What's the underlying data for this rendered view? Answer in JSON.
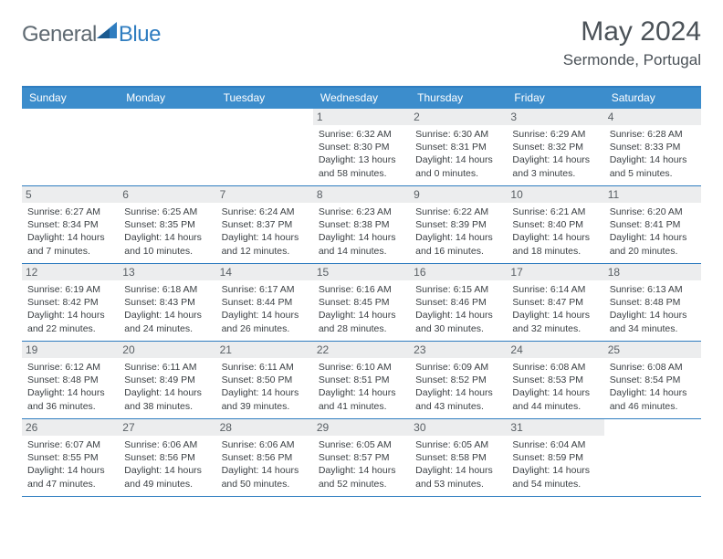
{
  "brand": {
    "part1": "General",
    "part2": "Blue"
  },
  "title": "May 2024",
  "location": "Sermonde, Portugal",
  "colors": {
    "header_bg": "#3c8dcc",
    "border": "#2f7dc0",
    "daynum_bg": "#ecedee",
    "text": "#3a3f43",
    "title_text": "#4b5258"
  },
  "dayHeaders": [
    "Sunday",
    "Monday",
    "Tuesday",
    "Wednesday",
    "Thursday",
    "Friday",
    "Saturday"
  ],
  "weeks": [
    [
      null,
      null,
      null,
      {
        "n": "1",
        "sunrise": "6:32 AM",
        "sunset": "8:30 PM",
        "daylight": "13 hours and 58 minutes."
      },
      {
        "n": "2",
        "sunrise": "6:30 AM",
        "sunset": "8:31 PM",
        "daylight": "14 hours and 0 minutes."
      },
      {
        "n": "3",
        "sunrise": "6:29 AM",
        "sunset": "8:32 PM",
        "daylight": "14 hours and 3 minutes."
      },
      {
        "n": "4",
        "sunrise": "6:28 AM",
        "sunset": "8:33 PM",
        "daylight": "14 hours and 5 minutes."
      }
    ],
    [
      {
        "n": "5",
        "sunrise": "6:27 AM",
        "sunset": "8:34 PM",
        "daylight": "14 hours and 7 minutes."
      },
      {
        "n": "6",
        "sunrise": "6:25 AM",
        "sunset": "8:35 PM",
        "daylight": "14 hours and 10 minutes."
      },
      {
        "n": "7",
        "sunrise": "6:24 AM",
        "sunset": "8:37 PM",
        "daylight": "14 hours and 12 minutes."
      },
      {
        "n": "8",
        "sunrise": "6:23 AM",
        "sunset": "8:38 PM",
        "daylight": "14 hours and 14 minutes."
      },
      {
        "n": "9",
        "sunrise": "6:22 AM",
        "sunset": "8:39 PM",
        "daylight": "14 hours and 16 minutes."
      },
      {
        "n": "10",
        "sunrise": "6:21 AM",
        "sunset": "8:40 PM",
        "daylight": "14 hours and 18 minutes."
      },
      {
        "n": "11",
        "sunrise": "6:20 AM",
        "sunset": "8:41 PM",
        "daylight": "14 hours and 20 minutes."
      }
    ],
    [
      {
        "n": "12",
        "sunrise": "6:19 AM",
        "sunset": "8:42 PM",
        "daylight": "14 hours and 22 minutes."
      },
      {
        "n": "13",
        "sunrise": "6:18 AM",
        "sunset": "8:43 PM",
        "daylight": "14 hours and 24 minutes."
      },
      {
        "n": "14",
        "sunrise": "6:17 AM",
        "sunset": "8:44 PM",
        "daylight": "14 hours and 26 minutes."
      },
      {
        "n": "15",
        "sunrise": "6:16 AM",
        "sunset": "8:45 PM",
        "daylight": "14 hours and 28 minutes."
      },
      {
        "n": "16",
        "sunrise": "6:15 AM",
        "sunset": "8:46 PM",
        "daylight": "14 hours and 30 minutes."
      },
      {
        "n": "17",
        "sunrise": "6:14 AM",
        "sunset": "8:47 PM",
        "daylight": "14 hours and 32 minutes."
      },
      {
        "n": "18",
        "sunrise": "6:13 AM",
        "sunset": "8:48 PM",
        "daylight": "14 hours and 34 minutes."
      }
    ],
    [
      {
        "n": "19",
        "sunrise": "6:12 AM",
        "sunset": "8:48 PM",
        "daylight": "14 hours and 36 minutes."
      },
      {
        "n": "20",
        "sunrise": "6:11 AM",
        "sunset": "8:49 PM",
        "daylight": "14 hours and 38 minutes."
      },
      {
        "n": "21",
        "sunrise": "6:11 AM",
        "sunset": "8:50 PM",
        "daylight": "14 hours and 39 minutes."
      },
      {
        "n": "22",
        "sunrise": "6:10 AM",
        "sunset": "8:51 PM",
        "daylight": "14 hours and 41 minutes."
      },
      {
        "n": "23",
        "sunrise": "6:09 AM",
        "sunset": "8:52 PM",
        "daylight": "14 hours and 43 minutes."
      },
      {
        "n": "24",
        "sunrise": "6:08 AM",
        "sunset": "8:53 PM",
        "daylight": "14 hours and 44 minutes."
      },
      {
        "n": "25",
        "sunrise": "6:08 AM",
        "sunset": "8:54 PM",
        "daylight": "14 hours and 46 minutes."
      }
    ],
    [
      {
        "n": "26",
        "sunrise": "6:07 AM",
        "sunset": "8:55 PM",
        "daylight": "14 hours and 47 minutes."
      },
      {
        "n": "27",
        "sunrise": "6:06 AM",
        "sunset": "8:56 PM",
        "daylight": "14 hours and 49 minutes."
      },
      {
        "n": "28",
        "sunrise": "6:06 AM",
        "sunset": "8:56 PM",
        "daylight": "14 hours and 50 minutes."
      },
      {
        "n": "29",
        "sunrise": "6:05 AM",
        "sunset": "8:57 PM",
        "daylight": "14 hours and 52 minutes."
      },
      {
        "n": "30",
        "sunrise": "6:05 AM",
        "sunset": "8:58 PM",
        "daylight": "14 hours and 53 minutes."
      },
      {
        "n": "31",
        "sunrise": "6:04 AM",
        "sunset": "8:59 PM",
        "daylight": "14 hours and 54 minutes."
      },
      null
    ]
  ],
  "labels": {
    "sunrise": "Sunrise:",
    "sunset": "Sunset:",
    "daylight": "Daylight:"
  }
}
